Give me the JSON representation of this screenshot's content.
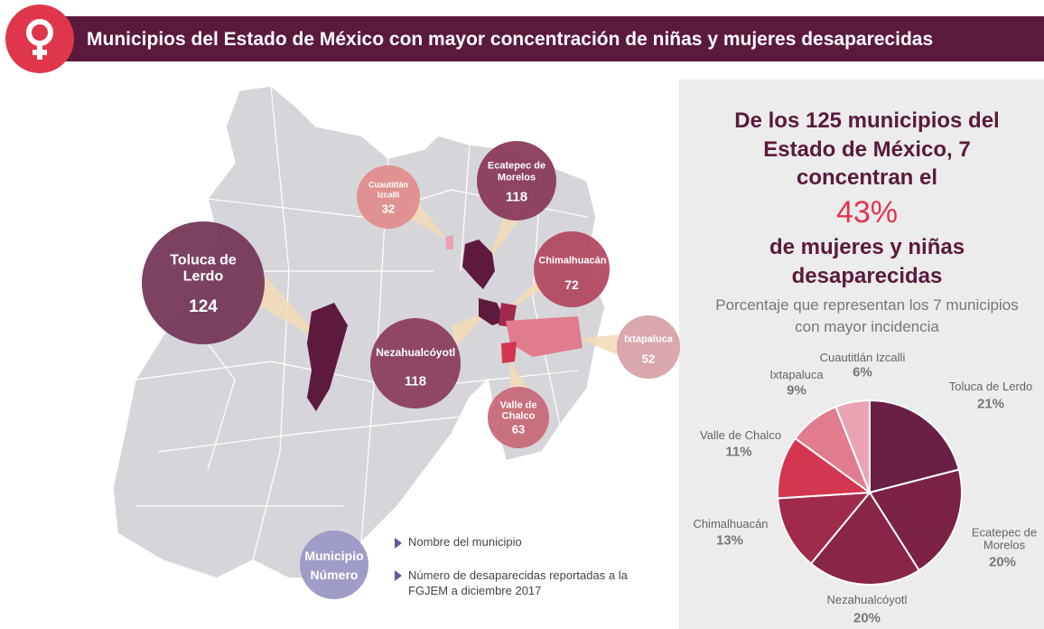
{
  "header": {
    "title": "Municipios del Estado de México con mayor concentración de niñas y mujeres desaparecidas"
  },
  "map": {
    "municipalities": [
      {
        "name": "Toluca de Lerdo",
        "value": 124,
        "color": "#76385a"
      },
      {
        "name": "Cuautitlán Izcalli",
        "value": 32,
        "color": "#e08e8e"
      },
      {
        "name": "Ecatepec de Morelos",
        "value": 118,
        "color": "#8a3b5d"
      },
      {
        "name": "Chimalhuacán",
        "value": 72,
        "color": "#b24a62"
      },
      {
        "name": "Nezahualcóyotl",
        "value": 118,
        "color": "#8b3f5f"
      },
      {
        "name": "Ixtapaluca",
        "value": 52,
        "color": "#d8a2a8"
      },
      {
        "name": "Valle de Chalco",
        "value": 63,
        "color": "#c86a79"
      }
    ]
  },
  "legend": {
    "sample_name": "Municipio",
    "sample_number": "Número",
    "name_note": "Nombre del municipio",
    "number_note": "Número de desaparecidas reportadas a la FGJEM a diciembre 2017"
  },
  "summary": {
    "lead": "De los 125 municipios del Estado de México, 7 concentran el",
    "highlight": "43%",
    "tail": "de mujeres y niñas desaparecidas"
  },
  "chart_data": {
    "type": "pie",
    "title": "Porcentaje que representan los 7 municipios con mayor incidencia",
    "categories": [
      "Toluca de Lerdo",
      "Ecatepec de Morelos",
      "Nezahualcóyotl",
      "Chimalhuacán",
      "Valle de Chalco",
      "Ixtapaluca",
      "Cuautitlán Izcalli"
    ],
    "values": [
      21,
      20,
      20,
      13,
      11,
      9,
      6
    ],
    "value_labels": [
      "21%",
      "20%",
      "20%",
      "13%",
      "11%",
      "9%",
      "6%"
    ],
    "colors": [
      "#6a1f45",
      "#7b2246",
      "#892549",
      "#a02a4b",
      "#d5364f",
      "#e07c8e",
      "#e9a3b3"
    ]
  }
}
